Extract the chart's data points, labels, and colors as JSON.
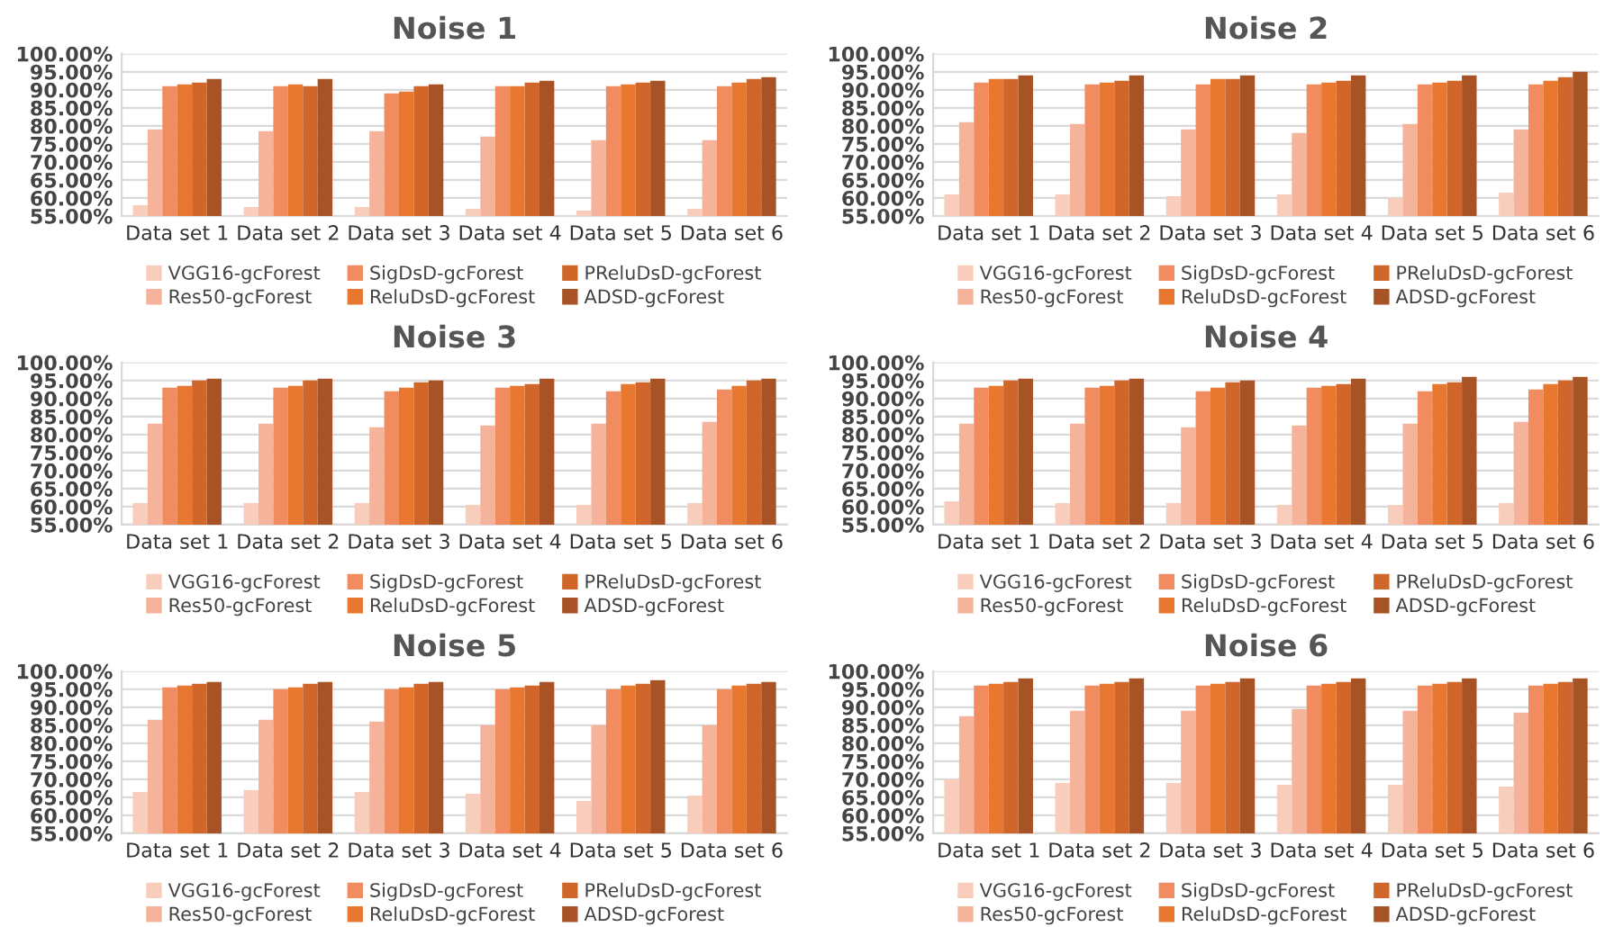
{
  "chart_data": [
    {
      "type": "bar",
      "title": "Noise 1",
      "categories": [
        "Data set 1",
        "Data set 2",
        "Data set 3",
        "Data set 4",
        "Data set 5",
        "Data set 6"
      ],
      "ylim": [
        55,
        100
      ],
      "yticks": [
        {
          "value": 55,
          "label": "55.00%"
        },
        {
          "value": 60,
          "label": "60.00%"
        },
        {
          "value": 65,
          "label": "65.00%"
        },
        {
          "value": 70,
          "label": "70.00%"
        },
        {
          "value": 75,
          "label": "75.00%"
        },
        {
          "value": 80,
          "label": "80.00%"
        },
        {
          "value": 85,
          "label": "85.00%"
        },
        {
          "value": 90,
          "label": "90.00%"
        },
        {
          "value": 95,
          "label": "95.00%"
        },
        {
          "value": 100,
          "label": "100.00%"
        }
      ],
      "grid": "y",
      "legend": "bottom",
      "series": [
        {
          "name": "VGG16-gcForest",
          "color": "#f8cdbb",
          "values": [
            58,
            57.5,
            57.5,
            57,
            56.5,
            57
          ]
        },
        {
          "name": "Res50-gcForest",
          "color": "#f4b39a",
          "values": [
            79,
            78.5,
            78.5,
            77,
            76,
            76
          ]
        },
        {
          "name": "SigDsD-gcForest",
          "color": "#f08c5f",
          "values": [
            91,
            91,
            89,
            91,
            91,
            91
          ]
        },
        {
          "name": "ReluDsD-gcForest",
          "color": "#e8782f",
          "values": [
            91.5,
            91.5,
            89.5,
            91,
            91.5,
            92
          ]
        },
        {
          "name": "PReluDsD-gcForest",
          "color": "#d0662a",
          "values": [
            92,
            91,
            91,
            92,
            92,
            93
          ]
        },
        {
          "name": "ADSD-gcForest",
          "color": "#a85326",
          "values": [
            93,
            93,
            91.5,
            92.5,
            92.5,
            93.5
          ]
        }
      ]
    },
    {
      "type": "bar",
      "title": "Noise 2",
      "categories": [
        "Data set 1",
        "Data set 2",
        "Data set 3",
        "Data set 4",
        "Data set 5",
        "Data set 6"
      ],
      "ylim": [
        55,
        100
      ],
      "yticks": [
        {
          "value": 55,
          "label": "55.00%"
        },
        {
          "value": 60,
          "label": "60.00%"
        },
        {
          "value": 65,
          "label": "65.00%"
        },
        {
          "value": 70,
          "label": "70.00%"
        },
        {
          "value": 75,
          "label": "75.00%"
        },
        {
          "value": 80,
          "label": "80.00%"
        },
        {
          "value": 85,
          "label": "85.00%"
        },
        {
          "value": 90,
          "label": "90.00%"
        },
        {
          "value": 95,
          "label": "95.00%"
        },
        {
          "value": 100,
          "label": "100.00%"
        }
      ],
      "grid": "y",
      "legend": "bottom",
      "series": [
        {
          "name": "VGG16-gcForest",
          "color": "#f8cdbb",
          "values": [
            61,
            61,
            60.5,
            61,
            60,
            61.5
          ]
        },
        {
          "name": "Res50-gcForest",
          "color": "#f4b39a",
          "values": [
            81,
            80.5,
            79,
            78,
            80.5,
            79
          ]
        },
        {
          "name": "SigDsD-gcForest",
          "color": "#f08c5f",
          "values": [
            92,
            91.5,
            91.5,
            91.5,
            91.5,
            91.5
          ]
        },
        {
          "name": "ReluDsD-gcForest",
          "color": "#e8782f",
          "values": [
            93,
            92,
            93,
            92,
            92,
            92.5
          ]
        },
        {
          "name": "PReluDsD-gcForest",
          "color": "#d0662a",
          "values": [
            93,
            92.5,
            93,
            92.5,
            92.5,
            93.5
          ]
        },
        {
          "name": "ADSD-gcForest",
          "color": "#a85326",
          "values": [
            94,
            94,
            94,
            94,
            94,
            95
          ]
        }
      ]
    },
    {
      "type": "bar",
      "title": "Noise 3",
      "categories": [
        "Data set 1",
        "Data set 2",
        "Data set 3",
        "Data set 4",
        "Data set 5",
        "Data set 6"
      ],
      "ylim": [
        55,
        100
      ],
      "yticks": [
        {
          "value": 55,
          "label": "55.00%"
        },
        {
          "value": 60,
          "label": "60.00%"
        },
        {
          "value": 65,
          "label": "65.00%"
        },
        {
          "value": 70,
          "label": "70.00%"
        },
        {
          "value": 75,
          "label": "75.00%"
        },
        {
          "value": 80,
          "label": "80.00%"
        },
        {
          "value": 85,
          "label": "85.00%"
        },
        {
          "value": 90,
          "label": "90.00%"
        },
        {
          "value": 95,
          "label": "95.00%"
        },
        {
          "value": 100,
          "label": "100.00%"
        }
      ],
      "grid": "y",
      "legend": "bottom",
      "series": [
        {
          "name": "VGG16-gcForest",
          "color": "#f8cdbb",
          "values": [
            61,
            61,
            61,
            60.5,
            60.5,
            61
          ]
        },
        {
          "name": "Res50-gcForest",
          "color": "#f4b39a",
          "values": [
            83,
            83,
            82,
            82.5,
            83,
            83.5
          ]
        },
        {
          "name": "SigDsD-gcForest",
          "color": "#f08c5f",
          "values": [
            93,
            93,
            92,
            93,
            92,
            92.5
          ]
        },
        {
          "name": "ReluDsD-gcForest",
          "color": "#e8782f",
          "values": [
            93.5,
            93.5,
            93,
            93.5,
            94,
            93.5
          ]
        },
        {
          "name": "PReluDsD-gcForest",
          "color": "#d0662a",
          "values": [
            95,
            95,
            94.5,
            94,
            94.5,
            95
          ]
        },
        {
          "name": "ADSD-gcForest",
          "color": "#a85326",
          "values": [
            95.5,
            95.5,
            95,
            95.5,
            95.5,
            95.5
          ]
        }
      ]
    },
    {
      "type": "bar",
      "title": "Noise 4",
      "categories": [
        "Data set 1",
        "Data set 2",
        "Data set 3",
        "Data set 4",
        "Data set 5",
        "Data set 6"
      ],
      "ylim": [
        55,
        100
      ],
      "yticks": [
        {
          "value": 55,
          "label": "55.00%"
        },
        {
          "value": 60,
          "label": "60.00%"
        },
        {
          "value": 65,
          "label": "65.00%"
        },
        {
          "value": 70,
          "label": "70.00%"
        },
        {
          "value": 75,
          "label": "75.00%"
        },
        {
          "value": 80,
          "label": "80.00%"
        },
        {
          "value": 85,
          "label": "85.00%"
        },
        {
          "value": 90,
          "label": "90.00%"
        },
        {
          "value": 95,
          "label": "95.00%"
        },
        {
          "value": 100,
          "label": "100.00%"
        }
      ],
      "grid": "y",
      "legend": "bottom",
      "series": [
        {
          "name": "VGG16-gcForest",
          "color": "#f8cdbb",
          "values": [
            61.5,
            61,
            61,
            60.5,
            60.5,
            61
          ]
        },
        {
          "name": "Res50-gcForest",
          "color": "#f4b39a",
          "values": [
            83,
            83,
            82,
            82.5,
            83,
            83.5
          ]
        },
        {
          "name": "SigDsD-gcForest",
          "color": "#f08c5f",
          "values": [
            93,
            93,
            92,
            93,
            92,
            92.5
          ]
        },
        {
          "name": "ReluDsD-gcForest",
          "color": "#e8782f",
          "values": [
            93.5,
            93.5,
            93,
            93.5,
            94,
            94
          ]
        },
        {
          "name": "PReluDsD-gcForest",
          "color": "#d0662a",
          "values": [
            95,
            95,
            94.5,
            94,
            94.5,
            95
          ]
        },
        {
          "name": "ADSD-gcForest",
          "color": "#a85326",
          "values": [
            95.5,
            95.5,
            95,
            95.5,
            96,
            96
          ]
        }
      ]
    },
    {
      "type": "bar",
      "title": "Noise 5",
      "categories": [
        "Data set 1",
        "Data set 2",
        "Data set 3",
        "Data set 4",
        "Data set 5",
        "Data set 6"
      ],
      "ylim": [
        55,
        100
      ],
      "yticks": [
        {
          "value": 55,
          "label": "55.00%"
        },
        {
          "value": 60,
          "label": "60.00%"
        },
        {
          "value": 65,
          "label": "65.00%"
        },
        {
          "value": 70,
          "label": "70.00%"
        },
        {
          "value": 75,
          "label": "75.00%"
        },
        {
          "value": 80,
          "label": "80.00%"
        },
        {
          "value": 85,
          "label": "85.00%"
        },
        {
          "value": 90,
          "label": "90.00%"
        },
        {
          "value": 95,
          "label": "95.00%"
        },
        {
          "value": 100,
          "label": "100.00%"
        }
      ],
      "grid": "y",
      "legend": "bottom",
      "series": [
        {
          "name": "VGG16-gcForest",
          "color": "#f8cdbb",
          "values": [
            66.5,
            67,
            66.5,
            66,
            64,
            65.5
          ]
        },
        {
          "name": "Res50-gcForest",
          "color": "#f4b39a",
          "values": [
            86.5,
            86.5,
            86,
            85,
            85,
            85
          ]
        },
        {
          "name": "SigDsD-gcForest",
          "color": "#f08c5f",
          "values": [
            95.5,
            95,
            95,
            95,
            95,
            95
          ]
        },
        {
          "name": "ReluDsD-gcForest",
          "color": "#e8782f",
          "values": [
            96,
            95.5,
            95.5,
            95.5,
            96,
            96
          ]
        },
        {
          "name": "PReluDsD-gcForest",
          "color": "#d0662a",
          "values": [
            96.5,
            96.5,
            96.5,
            96,
            96.5,
            96.5
          ]
        },
        {
          "name": "ADSD-gcForest",
          "color": "#a85326",
          "values": [
            97,
            97,
            97,
            97,
            97.5,
            97
          ]
        }
      ]
    },
    {
      "type": "bar",
      "title": "Noise 6",
      "categories": [
        "Data set 1",
        "Data set 2",
        "Data set 3",
        "Data set 4",
        "Data set 5",
        "Data set 6"
      ],
      "ylim": [
        55,
        100
      ],
      "yticks": [
        {
          "value": 55,
          "label": "55.00%"
        },
        {
          "value": 60,
          "label": "60.00%"
        },
        {
          "value": 65,
          "label": "65.00%"
        },
        {
          "value": 70,
          "label": "70.00%"
        },
        {
          "value": 75,
          "label": "75.00%"
        },
        {
          "value": 80,
          "label": "80.00%"
        },
        {
          "value": 85,
          "label": "85.00%"
        },
        {
          "value": 90,
          "label": "90.00%"
        },
        {
          "value": 95,
          "label": "95.00%"
        },
        {
          "value": 100,
          "label": "100.00%"
        }
      ],
      "grid": "y",
      "legend": "bottom",
      "series": [
        {
          "name": "VGG16-gcForest",
          "color": "#f8cdbb",
          "values": [
            70,
            69,
            69,
            68.5,
            68.5,
            68
          ]
        },
        {
          "name": "Res50-gcForest",
          "color": "#f4b39a",
          "values": [
            87.5,
            89,
            89,
            89.5,
            89,
            88.5
          ]
        },
        {
          "name": "SigDsD-gcForest",
          "color": "#f08c5f",
          "values": [
            96,
            96,
            96,
            96,
            96,
            96
          ]
        },
        {
          "name": "ReluDsD-gcForest",
          "color": "#e8782f",
          "values": [
            96.5,
            96.5,
            96.5,
            96.5,
            96.5,
            96.5
          ]
        },
        {
          "name": "PReluDsD-gcForest",
          "color": "#d0662a",
          "values": [
            97,
            97,
            97,
            97,
            97,
            97
          ]
        },
        {
          "name": "ADSD-gcForest",
          "color": "#a85326",
          "values": [
            98,
            98,
            98,
            98,
            98,
            98
          ]
        }
      ]
    }
  ]
}
